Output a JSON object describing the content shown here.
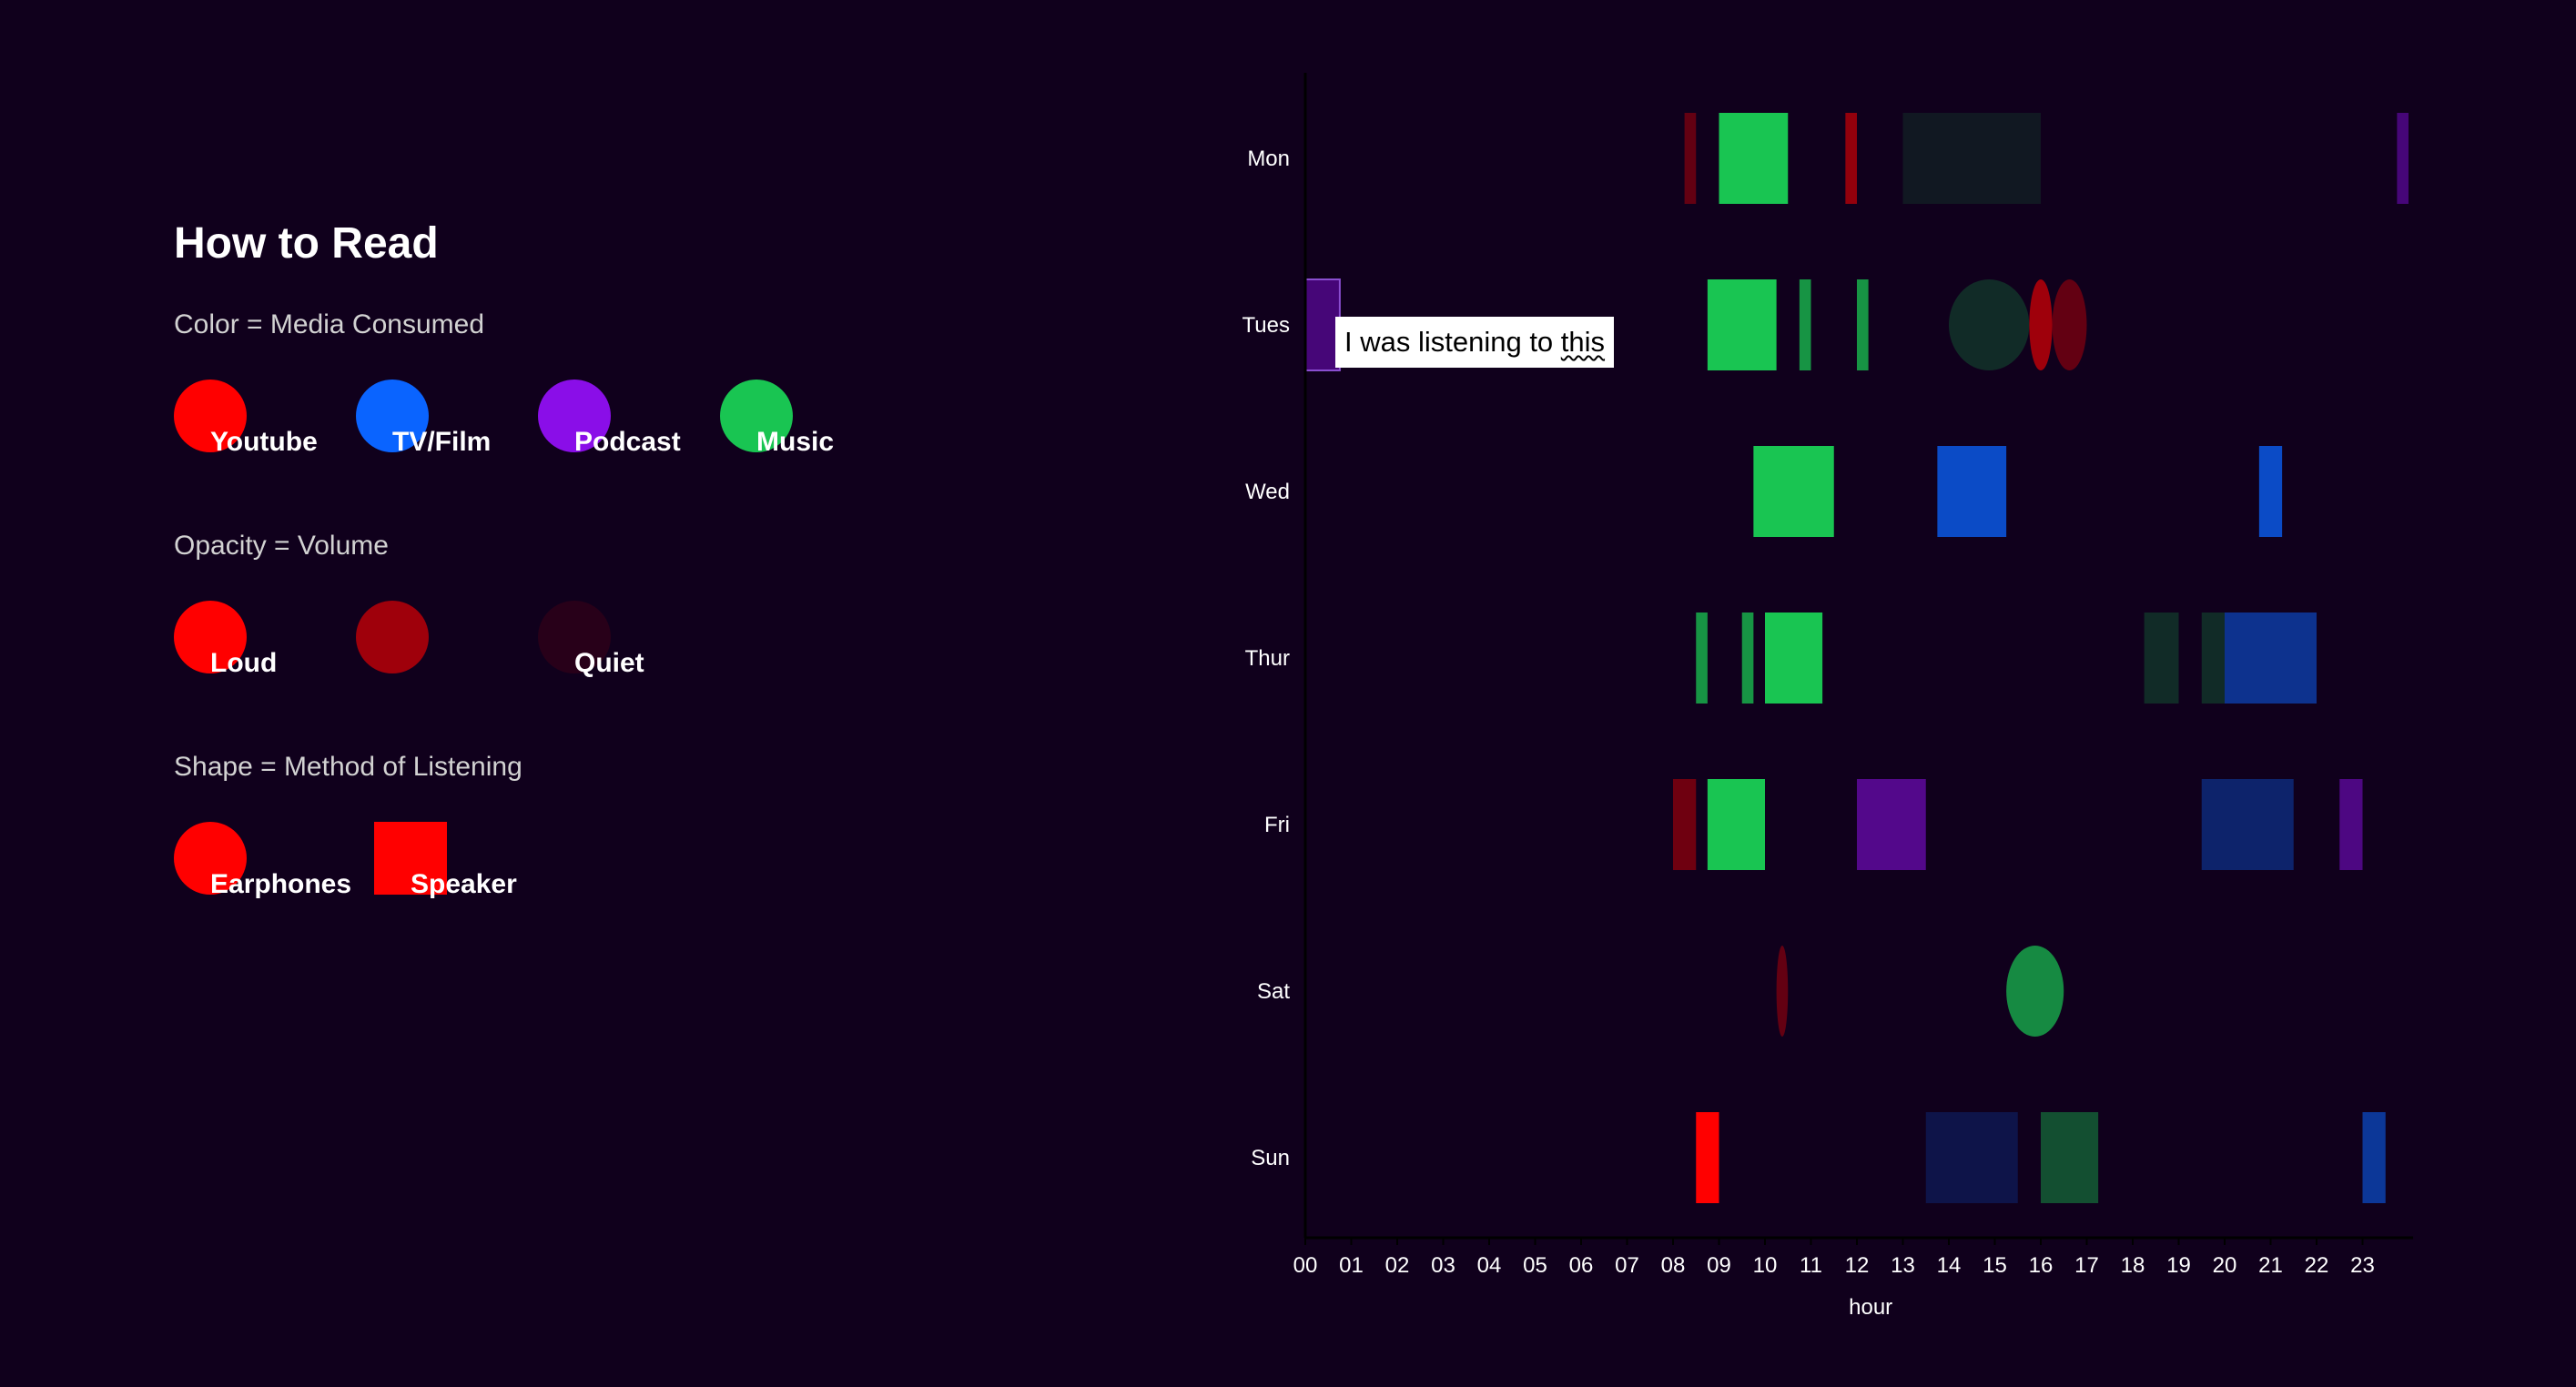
{
  "legend": {
    "title": "How to Read",
    "color_section": {
      "title": "Color = Media Consumed",
      "items": [
        {
          "label": "Youtube",
          "color": "#ff0000"
        },
        {
          "label": "TV/Film",
          "color": "#0a64ff"
        },
        {
          "label": "Podcast",
          "color": "#8a0ee8"
        },
        {
          "label": "Music",
          "color": "#19c552"
        }
      ]
    },
    "opacity_section": {
      "title": "Opacity = Volume",
      "items": [
        {
          "label": "Loud",
          "opacity": 1.0
        },
        {
          "label": "",
          "opacity": 0.6
        },
        {
          "label": "Quiet",
          "opacity": 0.1
        }
      ]
    },
    "shape_section": {
      "title": "Shape = Method of Listening",
      "items": [
        {
          "label": "Earphones",
          "shape": "circle"
        },
        {
          "label": "Speaker",
          "shape": "square"
        }
      ]
    }
  },
  "tooltip": {
    "prefix": "I was listening to ",
    "link": "this"
  },
  "chart_data": {
    "type": "timeline",
    "xlabel": "hour",
    "ylabel": "",
    "xlim": [
      0,
      24
    ],
    "x_ticks": [
      "00",
      "01",
      "02",
      "03",
      "04",
      "05",
      "06",
      "07",
      "08",
      "09",
      "10",
      "11",
      "12",
      "13",
      "14",
      "15",
      "16",
      "17",
      "18",
      "19",
      "20",
      "21",
      "22",
      "23"
    ],
    "days": [
      "Mon",
      "Tues",
      "Wed",
      "Thur",
      "Fri",
      "Sat",
      "Sun"
    ],
    "colors": {
      "Youtube": "#ff0000",
      "TV/Film": "#0a64ff",
      "Podcast": "#8a0ee8",
      "Music": "#19c552"
    },
    "sessions": [
      {
        "day": "Mon",
        "start": 8.25,
        "end": 8.5,
        "media": "Youtube",
        "volume": 0.35,
        "method": "Speaker"
      },
      {
        "day": "Mon",
        "start": 9.0,
        "end": 10.5,
        "media": "Music",
        "volume": 1.0,
        "method": "Speaker"
      },
      {
        "day": "Mon",
        "start": 11.75,
        "end": 12.0,
        "media": "Youtube",
        "volume": 0.55,
        "method": "Speaker"
      },
      {
        "day": "Mon",
        "start": 13.0,
        "end": 16.0,
        "media": "Music",
        "volume": 0.12,
        "method": "Speaker"
      },
      {
        "day": "Mon",
        "start": 23.75,
        "end": 24.0,
        "media": "Podcast",
        "volume": 0.45,
        "method": "Speaker"
      },
      {
        "day": "Tues",
        "start": 0.0,
        "end": 0.75,
        "media": "Podcast",
        "volume": 0.45,
        "method": "Speaker"
      },
      {
        "day": "Tues",
        "start": 8.75,
        "end": 10.25,
        "media": "Music",
        "volume": 1.0,
        "method": "Speaker"
      },
      {
        "day": "Tues",
        "start": 10.75,
        "end": 11.0,
        "media": "Music",
        "volume": 0.75,
        "method": "Speaker"
      },
      {
        "day": "Tues",
        "start": 12.0,
        "end": 12.25,
        "media": "Music",
        "volume": 0.75,
        "method": "Speaker"
      },
      {
        "day": "Tues",
        "start": 14.0,
        "end": 15.75,
        "media": "Music",
        "volume": 0.22,
        "method": "Earphones"
      },
      {
        "day": "Tues",
        "start": 15.75,
        "end": 16.25,
        "media": "Youtube",
        "volume": 0.6,
        "method": "Earphones"
      },
      {
        "day": "Tues",
        "start": 16.25,
        "end": 17.0,
        "media": "Youtube",
        "volume": 0.35,
        "method": "Earphones"
      },
      {
        "day": "Wed",
        "start": 9.75,
        "end": 11.5,
        "media": "Music",
        "volume": 1.0,
        "method": "Speaker"
      },
      {
        "day": "Wed",
        "start": 13.75,
        "end": 15.25,
        "media": "TV/Film",
        "volume": 0.75,
        "method": "Speaker"
      },
      {
        "day": "Wed",
        "start": 20.75,
        "end": 21.25,
        "media": "TV/Film",
        "volume": 0.75,
        "method": "Speaker"
      },
      {
        "day": "Thur",
        "start": 8.5,
        "end": 8.75,
        "media": "Music",
        "volume": 0.75,
        "method": "Speaker"
      },
      {
        "day": "Thur",
        "start": 9.5,
        "end": 9.75,
        "media": "Music",
        "volume": 0.75,
        "method": "Speaker"
      },
      {
        "day": "Thur",
        "start": 10.0,
        "end": 11.25,
        "media": "Music",
        "volume": 1.0,
        "method": "Speaker"
      },
      {
        "day": "Thur",
        "start": 18.25,
        "end": 19.0,
        "media": "Music",
        "volume": 0.22,
        "method": "Speaker"
      },
      {
        "day": "Thur",
        "start": 19.5,
        "end": 20.0,
        "media": "Music",
        "volume": 0.22,
        "method": "Speaker"
      },
      {
        "day": "Thur",
        "start": 20.0,
        "end": 22.0,
        "media": "TV/Film",
        "volume": 0.5,
        "method": "Speaker"
      },
      {
        "day": "Fri",
        "start": 8.0,
        "end": 8.5,
        "media": "Youtube",
        "volume": 0.4,
        "method": "Speaker"
      },
      {
        "day": "Fri",
        "start": 8.75,
        "end": 10.0,
        "media": "Music",
        "volume": 1.0,
        "method": "Speaker"
      },
      {
        "day": "Fri",
        "start": 12.0,
        "end": 13.5,
        "media": "Podcast",
        "volume": 0.55,
        "method": "Speaker"
      },
      {
        "day": "Fri",
        "start": 19.5,
        "end": 21.5,
        "media": "TV/Film",
        "volume": 0.35,
        "method": "Speaker"
      },
      {
        "day": "Fri",
        "start": 22.5,
        "end": 23.0,
        "media": "Podcast",
        "volume": 0.5,
        "method": "Speaker"
      },
      {
        "day": "Sat",
        "start": 10.25,
        "end": 10.5,
        "media": "Youtube",
        "volume": 0.35,
        "method": "Earphones"
      },
      {
        "day": "Sat",
        "start": 15.25,
        "end": 16.5,
        "media": "Music",
        "volume": 0.7,
        "method": "Earphones"
      },
      {
        "day": "Sun",
        "start": 8.5,
        "end": 9.0,
        "media": "Youtube",
        "volume": 1.0,
        "method": "Speaker"
      },
      {
        "day": "Sun",
        "start": 13.5,
        "end": 15.5,
        "media": "TV/Film",
        "volume": 0.2,
        "method": "Speaker"
      },
      {
        "day": "Sun",
        "start": 16.0,
        "end": 17.25,
        "media": "Music",
        "volume": 0.4,
        "method": "Speaker"
      },
      {
        "day": "Sun",
        "start": 23.0,
        "end": 23.5,
        "media": "TV/Film",
        "volume": 0.55,
        "method": "Speaker"
      }
    ]
  }
}
